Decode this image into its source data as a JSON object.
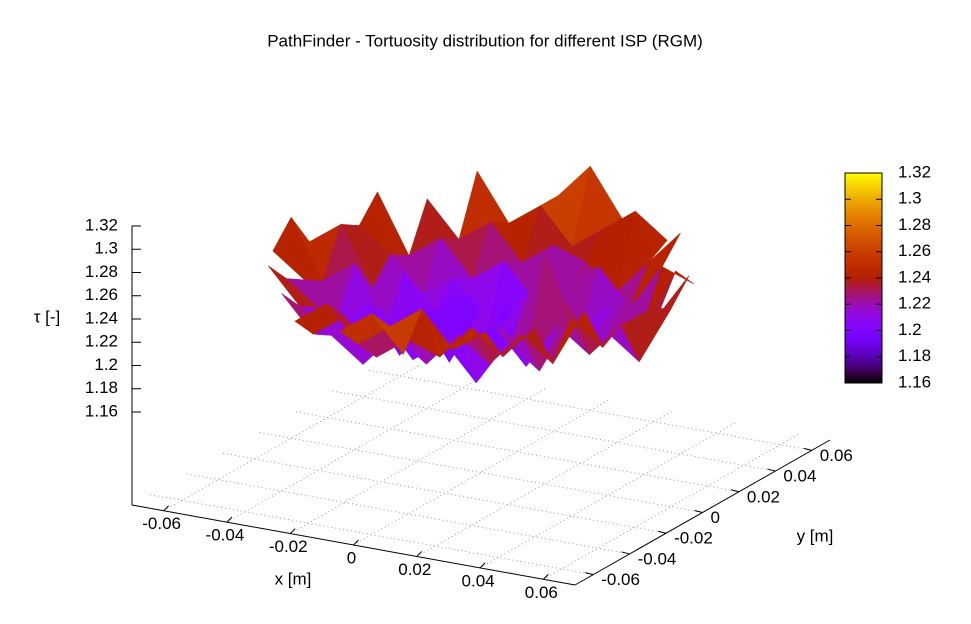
{
  "chart_data": {
    "type": "surface3d",
    "title": "PathFinder - Tortuosity distribution for different ISP (RGM)",
    "xlabel": "x [m]",
    "ylabel": "y [m]",
    "zlabel": "τ [-]",
    "x": [
      -0.06,
      -0.05,
      -0.04,
      -0.03,
      -0.02,
      -0.01,
      0,
      0.01,
      0.02,
      0.03,
      0.04,
      0.05,
      0.06
    ],
    "y": [
      -0.06,
      -0.05,
      -0.04,
      -0.03,
      -0.02,
      -0.01,
      0,
      0.01,
      0.02,
      0.03,
      0.04,
      0.05,
      0.06
    ],
    "z": [
      [
        null,
        null,
        null,
        null,
        null,
        1.25,
        1.27,
        1.24,
        null,
        null,
        null,
        null,
        null
      ],
      [
        null,
        null,
        null,
        1.24,
        1.26,
        1.23,
        1.25,
        1.27,
        1.24,
        1.26,
        null,
        null,
        null
      ],
      [
        null,
        null,
        1.25,
        1.22,
        1.24,
        1.21,
        1.23,
        1.22,
        1.25,
        1.23,
        1.26,
        null,
        null
      ],
      [
        null,
        1.26,
        1.23,
        1.21,
        1.19,
        1.22,
        1.2,
        1.23,
        1.21,
        1.24,
        1.22,
        1.27,
        null
      ],
      [
        null,
        1.24,
        1.22,
        1.2,
        1.23,
        1.19,
        1.21,
        1.18,
        1.22,
        1.2,
        1.25,
        1.23,
        null
      ],
      [
        1.25,
        1.23,
        1.2,
        1.22,
        1.18,
        1.21,
        1.2,
        1.22,
        1.19,
        1.23,
        1.21,
        1.24,
        1.26
      ],
      [
        1.27,
        1.22,
        1.24,
        1.19,
        1.21,
        1.17,
        1.22,
        1.2,
        1.28,
        1.21,
        1.22,
        1.2,
        1.25
      ],
      [
        1.24,
        1.26,
        1.21,
        1.23,
        1.2,
        1.22,
        1.19,
        1.21,
        1.23,
        1.2,
        1.24,
        1.23,
        1.27
      ],
      [
        null,
        1.25,
        1.23,
        1.2,
        1.22,
        1.18,
        1.21,
        1.23,
        1.2,
        1.22,
        1.21,
        1.26,
        null
      ],
      [
        null,
        1.27,
        1.22,
        1.24,
        1.21,
        1.23,
        1.2,
        1.22,
        1.24,
        1.21,
        1.25,
        1.24,
        null
      ],
      [
        null,
        null,
        1.26,
        1.23,
        1.25,
        1.22,
        1.24,
        1.23,
        1.21,
        1.24,
        1.27,
        null,
        null
      ],
      [
        null,
        null,
        null,
        1.28,
        1.24,
        1.26,
        1.23,
        1.25,
        1.27,
        1.25,
        null,
        null,
        null
      ],
      [
        null,
        null,
        null,
        null,
        null,
        1.26,
        1.29,
        1.25,
        null,
        null,
        null,
        null,
        null
      ]
    ],
    "xlim": [
      -0.07,
      0.07
    ],
    "ylim": [
      -0.07,
      0.07
    ],
    "zlim": [
      1.08,
      1.32
    ],
    "xticks": [
      -0.06,
      -0.04,
      -0.02,
      0,
      0.02,
      0.04,
      0.06
    ],
    "yticks": [
      -0.06,
      -0.04,
      -0.02,
      0,
      0.02,
      0.04,
      0.06
    ],
    "zticks": [
      1.16,
      1.18,
      1.2,
      1.22,
      1.24,
      1.26,
      1.28,
      1.3,
      1.32
    ],
    "cblim": [
      1.16,
      1.32
    ],
    "cbticks": [
      1.16,
      1.18,
      1.2,
      1.22,
      1.24,
      1.26,
      1.28,
      1.3,
      1.32
    ],
    "grid": true
  }
}
